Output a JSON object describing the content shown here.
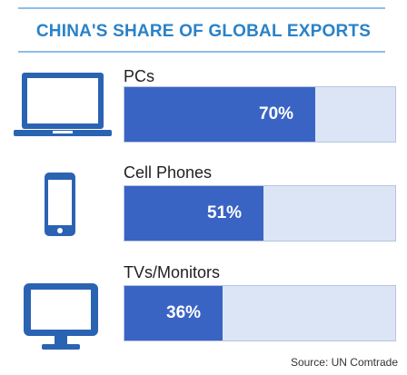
{
  "chart_data": {
    "type": "bar",
    "orientation": "horizontal",
    "title": "CHINA'S SHARE OF GLOBAL EXPORTS",
    "categories": [
      "PCs",
      "Cell Phones",
      "TVs/Monitors"
    ],
    "values": [
      70,
      51,
      36
    ],
    "value_labels": [
      "70%",
      "51%",
      "36%"
    ],
    "xlim": [
      0,
      100
    ],
    "icons": [
      "laptop-icon",
      "cell-phone-icon",
      "monitor-icon"
    ],
    "source": "Source: UN Comtrade",
    "colors": {
      "title": "#2a82c8",
      "bar": "#3a64c4",
      "track": "#dbe5f6",
      "icon": "#2b63b3"
    }
  }
}
